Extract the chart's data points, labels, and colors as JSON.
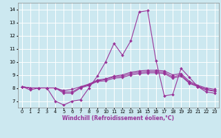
{
  "title": "",
  "xlabel": "Windchill (Refroidissement éolien,°C)",
  "bg_color": "#cce8f0",
  "grid_color": "#ffffff",
  "line_colors": [
    "#993399",
    "#993399",
    "#993399",
    "#993399"
  ],
  "xlim": [
    -0.5,
    23.5
  ],
  "ylim": [
    6.5,
    14.5
  ],
  "yticks": [
    7,
    8,
    9,
    10,
    11,
    12,
    13,
    14
  ],
  "xticks": [
    0,
    1,
    2,
    3,
    4,
    5,
    6,
    7,
    8,
    9,
    10,
    11,
    12,
    13,
    14,
    15,
    16,
    17,
    18,
    19,
    20,
    21,
    22,
    23
  ],
  "series": [
    [
      8.1,
      7.85,
      8.0,
      8.0,
      7.0,
      6.7,
      7.0,
      7.1,
      8.0,
      8.9,
      10.0,
      11.4,
      10.5,
      11.6,
      13.8,
      13.9,
      10.1,
      7.4,
      7.5,
      9.5,
      8.8,
      8.1,
      7.7,
      7.6
    ],
    [
      8.1,
      8.0,
      8.0,
      8.0,
      8.0,
      7.6,
      7.6,
      8.0,
      8.2,
      8.5,
      8.55,
      8.75,
      8.8,
      9.0,
      9.1,
      9.15,
      9.15,
      9.1,
      8.75,
      8.9,
      8.35,
      8.1,
      7.85,
      7.75
    ],
    [
      8.1,
      8.0,
      8.0,
      8.0,
      8.0,
      7.7,
      7.7,
      8.05,
      8.25,
      8.55,
      8.65,
      8.85,
      8.9,
      9.1,
      9.2,
      9.25,
      9.25,
      9.2,
      8.85,
      9.0,
      8.4,
      8.15,
      7.9,
      7.8
    ],
    [
      8.1,
      8.0,
      8.0,
      8.0,
      8.0,
      7.8,
      7.9,
      8.1,
      8.3,
      8.6,
      8.7,
      8.9,
      9.0,
      9.2,
      9.3,
      9.35,
      9.35,
      9.3,
      9.0,
      9.1,
      8.5,
      8.2,
      8.0,
      7.9
    ]
  ],
  "marker": "D",
  "markersize": 2.0,
  "linewidth": 0.8,
  "xlabel_fontsize": 5.5,
  "tick_fontsize": 4.8
}
